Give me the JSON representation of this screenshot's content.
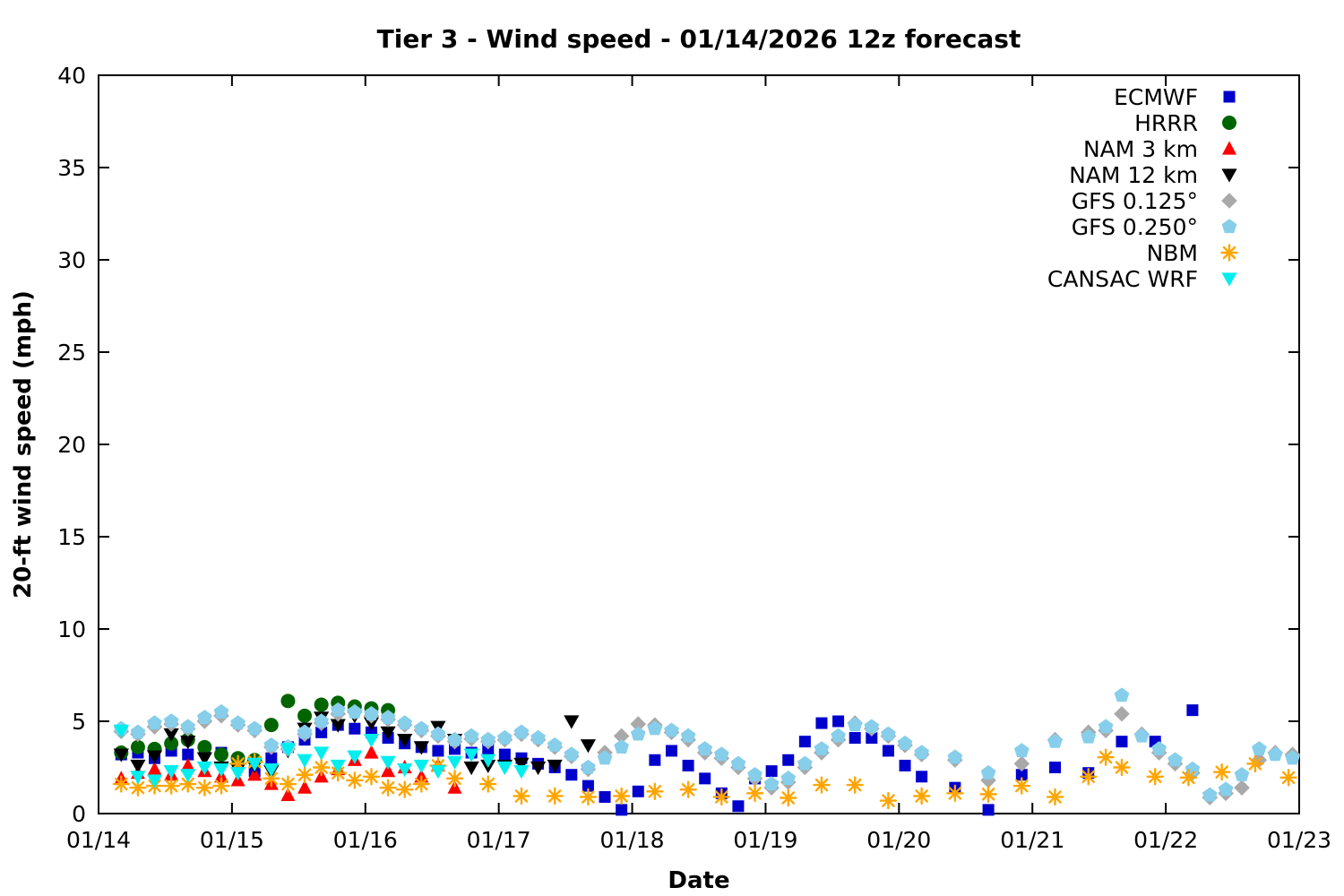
{
  "title": "Tier 3 - Wind speed - 01/14/2026 12z forecast",
  "chart_data": {
    "type": "scatter",
    "title": "Tier 3 - Wind speed - 01/14/2026 12z forecast",
    "xlabel": "Date",
    "ylabel": "20-ft wind speed (mph)",
    "ylim": [
      0,
      40
    ],
    "ytick_step": 5,
    "x_tick_labels": [
      "01/14",
      "01/15",
      "01/16",
      "01/17",
      "01/18",
      "01/19",
      "01/20",
      "01/21",
      "01/22",
      "01/23"
    ],
    "x_range_days": [
      0,
      9
    ],
    "grid": false,
    "legend_position": "top-right",
    "series": [
      {
        "name": "ECMWF",
        "marker": "square",
        "color": "#0000cd",
        "x": [
          0.17,
          0.295,
          0.42,
          0.545,
          0.67,
          0.795,
          0.92,
          1.045,
          1.17,
          1.295,
          1.42,
          1.545,
          1.67,
          1.795,
          1.92,
          2.045,
          2.17,
          2.295,
          2.42,
          2.545,
          2.67,
          2.795,
          2.92,
          3.045,
          3.17,
          3.295,
          3.42,
          3.545,
          3.67,
          3.795,
          3.92,
          4.045,
          4.17,
          4.295,
          4.42,
          4.545,
          4.67,
          4.795,
          4.92,
          5.045,
          5.17,
          5.295,
          5.42,
          5.545,
          5.67,
          5.795,
          5.92,
          6.045,
          6.17,
          6.42,
          6.67,
          6.92,
          7.17,
          7.42,
          7.67,
          7.92,
          8.2
        ],
        "y": [
          3.2,
          3.3,
          3.0,
          3.4,
          3.2,
          3.5,
          3.3,
          2.9,
          2.3,
          3.0,
          3.6,
          4.0,
          4.4,
          4.8,
          4.6,
          4.4,
          4.1,
          3.8,
          3.6,
          3.4,
          3.5,
          3.3,
          3.5,
          3.2,
          3.0,
          2.7,
          2.5,
          2.1,
          1.5,
          0.9,
          0.2,
          1.2,
          2.9,
          3.4,
          2.6,
          1.9,
          1.1,
          0.4,
          1.9,
          2.3,
          2.9,
          3.9,
          4.9,
          5.0,
          4.1,
          4.1,
          3.4,
          2.6,
          2.0,
          1.4,
          0.2,
          2.1,
          2.5,
          2.2,
          3.9,
          3.9,
          5.6
        ]
      },
      {
        "name": "HRRR",
        "marker": "circle",
        "color": "#006400",
        "x": [
          0.17,
          0.295,
          0.42,
          0.545,
          0.67,
          0.795,
          0.92,
          1.045,
          1.17,
          1.295,
          1.42,
          1.545,
          1.67,
          1.795,
          1.92,
          2.045,
          2.17
        ],
        "y": [
          3.3,
          3.6,
          3.5,
          3.8,
          4.0,
          3.6,
          3.2,
          3.0,
          2.9,
          4.8,
          6.1,
          5.3,
          5.9,
          6.0,
          5.8,
          5.7,
          5.6
        ]
      },
      {
        "name": "NAM 3 km",
        "marker": "triangle-up",
        "color": "#ff0000",
        "x": [
          0.17,
          0.295,
          0.42,
          0.545,
          0.67,
          0.795,
          0.92,
          1.045,
          1.17,
          1.295,
          1.42,
          1.545,
          1.67,
          1.795,
          1.92,
          2.045,
          2.17,
          2.295,
          2.42,
          2.545,
          2.67
        ],
        "y": [
          1.9,
          2.2,
          2.4,
          2.1,
          2.6,
          2.3,
          2.0,
          1.8,
          2.1,
          1.6,
          1.0,
          1.4,
          2.0,
          2.4,
          2.9,
          3.3,
          2.3,
          2.5,
          2.0,
          2.6,
          1.4
        ]
      },
      {
        "name": "NAM 12 km",
        "marker": "triangle-down",
        "color": "#000000",
        "x": [
          0.17,
          0.295,
          0.42,
          0.545,
          0.67,
          0.795,
          0.92,
          1.045,
          1.17,
          1.295,
          1.42,
          1.545,
          1.67,
          1.795,
          1.92,
          2.045,
          2.17,
          2.295,
          2.42,
          2.545,
          2.67,
          2.795,
          2.92,
          3.045,
          3.17,
          3.295,
          3.42,
          3.545,
          3.67
        ],
        "y": [
          3.2,
          2.6,
          3.1,
          4.3,
          3.9,
          3.0,
          2.5,
          2.4,
          2.6,
          2.3,
          3.4,
          4.6,
          5.2,
          4.8,
          5.3,
          4.9,
          4.4,
          4.0,
          3.6,
          4.7,
          4.0,
          2.5,
          2.6,
          2.6,
          2.7,
          2.5,
          2.6,
          5.0,
          3.7
        ]
      },
      {
        "name": "GFS 0.125°",
        "marker": "diamond",
        "color": "#a9a9a9",
        "x": [
          0.17,
          0.295,
          0.42,
          0.545,
          0.67,
          0.795,
          0.92,
          1.045,
          1.17,
          1.295,
          1.42,
          1.545,
          1.67,
          1.795,
          1.92,
          2.045,
          2.17,
          2.295,
          2.42,
          2.545,
          2.67,
          2.795,
          2.92,
          3.045,
          3.17,
          3.295,
          3.42,
          3.545,
          3.67,
          3.795,
          3.92,
          4.045,
          4.17,
          4.295,
          4.42,
          4.545,
          4.67,
          4.795,
          4.92,
          5.045,
          5.17,
          5.295,
          5.42,
          5.545,
          5.67,
          5.795,
          5.92,
          6.045,
          6.17,
          6.42,
          6.67,
          6.92,
          7.17,
          7.42,
          7.55,
          7.67,
          7.82,
          7.95,
          8.07,
          8.2,
          8.33,
          8.45,
          8.57,
          8.7,
          8.82,
          8.95
        ],
        "y": [
          4.45,
          4.3,
          4.7,
          4.85,
          4.6,
          5.0,
          5.3,
          4.8,
          4.5,
          3.6,
          3.5,
          4.3,
          4.9,
          5.4,
          5.5,
          5.3,
          5.1,
          4.8,
          4.5,
          4.2,
          3.9,
          4.05,
          3.9,
          4.0,
          4.3,
          4.0,
          3.6,
          3.1,
          2.4,
          3.3,
          4.2,
          4.85,
          4.8,
          4.4,
          4.0,
          3.3,
          3.0,
          2.5,
          1.9,
          1.4,
          1.7,
          2.5,
          3.3,
          4.0,
          4.9,
          4.6,
          4.2,
          3.7,
          3.2,
          2.9,
          1.8,
          2.7,
          4.0,
          4.4,
          4.5,
          5.4,
          4.3,
          3.3,
          2.7,
          2.2,
          0.87,
          1.1,
          1.4,
          2.9,
          3.3,
          3.2
        ]
      },
      {
        "name": "GFS 0.250°",
        "marker": "pentagon",
        "color": "#87ceeb",
        "x": [
          0.17,
          0.295,
          0.42,
          0.545,
          0.67,
          0.795,
          0.92,
          1.045,
          1.17,
          1.295,
          1.42,
          1.545,
          1.67,
          1.795,
          1.92,
          2.045,
          2.17,
          2.295,
          2.42,
          2.545,
          2.67,
          2.795,
          2.92,
          3.045,
          3.17,
          3.295,
          3.42,
          3.545,
          3.67,
          3.795,
          3.92,
          4.045,
          4.17,
          4.295,
          4.42,
          4.545,
          4.67,
          4.795,
          4.92,
          5.045,
          5.17,
          5.295,
          5.42,
          5.545,
          5.67,
          5.795,
          5.92,
          6.045,
          6.17,
          6.42,
          6.67,
          6.92,
          7.17,
          7.42,
          7.55,
          7.67,
          7.82,
          7.95,
          8.07,
          8.2,
          8.33,
          8.45,
          8.57,
          8.7,
          8.82,
          8.95
        ],
        "y": [
          4.6,
          4.4,
          4.9,
          5.0,
          4.7,
          5.2,
          5.5,
          4.9,
          4.6,
          3.7,
          3.6,
          4.4,
          5.0,
          5.6,
          5.5,
          5.4,
          5.2,
          4.9,
          4.6,
          4.3,
          4.0,
          4.2,
          4.0,
          4.1,
          4.4,
          4.1,
          3.7,
          3.2,
          2.5,
          3.0,
          3.6,
          4.3,
          4.6,
          4.5,
          4.2,
          3.5,
          3.2,
          2.7,
          2.1,
          1.6,
          1.9,
          2.7,
          3.5,
          4.2,
          4.8,
          4.7,
          4.3,
          3.8,
          3.3,
          3.05,
          2.2,
          3.4,
          3.9,
          4.15,
          4.7,
          6.4,
          4.2,
          3.5,
          2.9,
          2.4,
          1.0,
          1.3,
          2.1,
          3.5,
          3.2,
          3.0
        ]
      },
      {
        "name": "NBM",
        "marker": "asterisk",
        "color": "#ffa500",
        "x": [
          0.17,
          0.295,
          0.42,
          0.545,
          0.67,
          0.795,
          0.92,
          1.045,
          1.17,
          1.295,
          1.42,
          1.545,
          1.67,
          1.795,
          1.92,
          2.045,
          2.17,
          2.295,
          2.42,
          2.545,
          2.67,
          2.92,
          3.17,
          3.42,
          3.67,
          3.92,
          4.17,
          4.42,
          4.67,
          4.92,
          5.17,
          5.42,
          5.67,
          5.92,
          6.17,
          6.42,
          6.67,
          6.92,
          7.17,
          7.42,
          7.55,
          7.67,
          7.92,
          8.17,
          8.42,
          8.67,
          8.92
        ],
        "y": [
          1.6,
          1.4,
          1.5,
          1.5,
          1.6,
          1.4,
          1.5,
          2.7,
          2.8,
          1.9,
          1.6,
          2.1,
          2.5,
          2.2,
          1.8,
          2.0,
          1.4,
          1.3,
          1.6,
          2.6,
          1.9,
          1.6,
          0.95,
          0.95,
          0.9,
          0.95,
          1.2,
          1.3,
          0.9,
          1.1,
          0.85,
          1.55,
          1.55,
          0.7,
          0.95,
          1.1,
          1.05,
          1.5,
          0.9,
          2.0,
          3.05,
          2.5,
          2.0,
          1.95,
          2.25,
          2.7,
          1.95
        ]
      },
      {
        "name": "CANSAC WRF",
        "marker": "triangle-down",
        "color": "#00eeee",
        "x": [
          0.17,
          0.295,
          0.42,
          0.545,
          0.67,
          0.795,
          0.92,
          1.045,
          1.17,
          1.295,
          1.42,
          1.545,
          1.67,
          1.795,
          1.92,
          2.045,
          2.17,
          2.295,
          2.42,
          2.545,
          2.67,
          2.795,
          2.92,
          3.045,
          3.17
        ],
        "y": [
          4.5,
          2.0,
          1.8,
          2.3,
          2.1,
          2.5,
          2.4,
          2.2,
          2.7,
          2.4,
          3.5,
          2.9,
          3.3,
          2.6,
          3.1,
          4.0,
          2.8,
          2.4,
          2.6,
          2.3,
          2.8,
          3.2,
          2.9,
          2.5,
          2.3
        ]
      }
    ]
  }
}
